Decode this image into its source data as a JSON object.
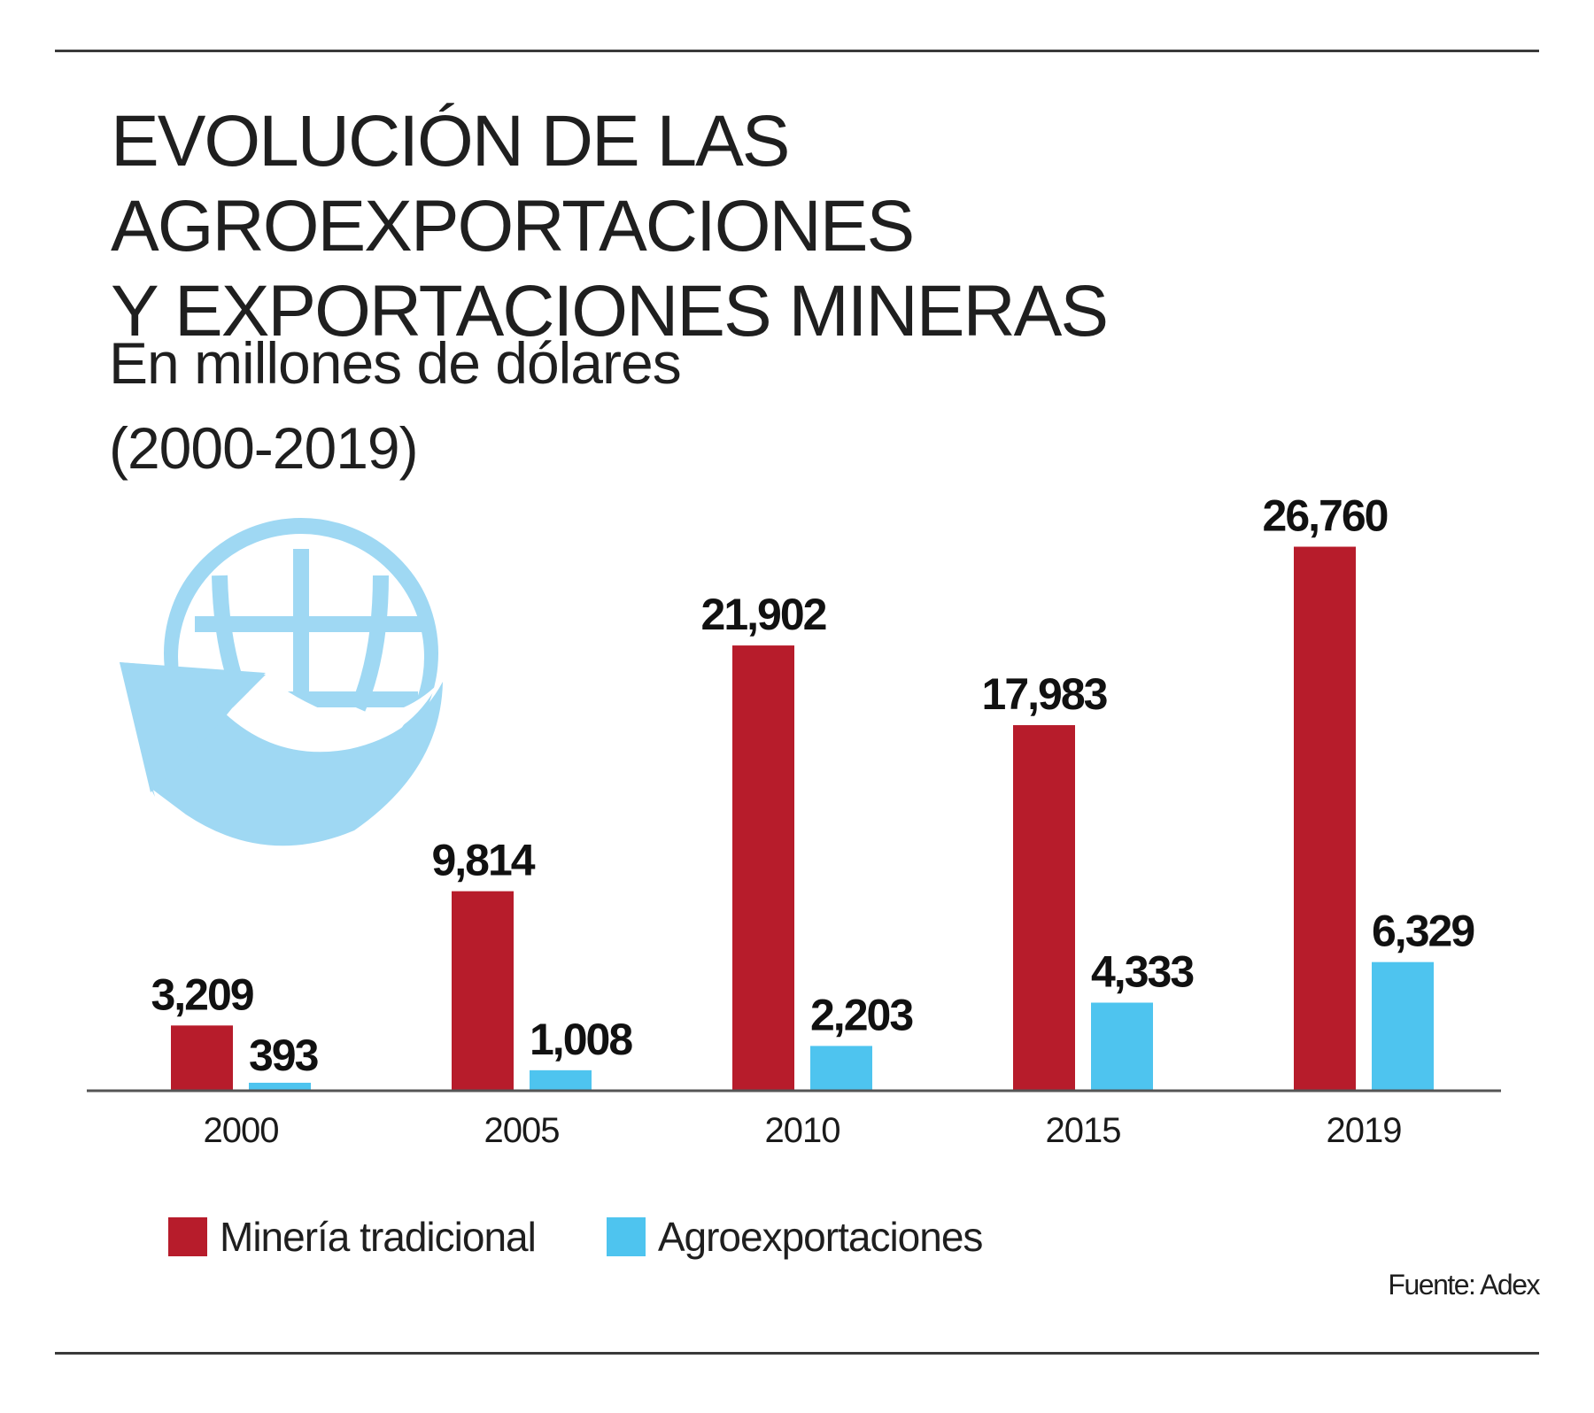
{
  "header": {
    "title_line1": "EVOLUCIÓN DE LAS AGROEXPORTACIONES",
    "title_line2": "Y EXPORTACIONES MINERAS",
    "subtitle_line1": "En millones de dólares",
    "subtitle_line2": "(2000-2019)"
  },
  "icon": "globe-with-circular-arrow-icon",
  "colors": {
    "mineria": "#b71c2b",
    "agro": "#4ec4ef",
    "icon": "#9fd8f3",
    "axis": "#555555",
    "rule": "#3a3a3a"
  },
  "chart_data": {
    "type": "bar",
    "categories": [
      "2000",
      "2005",
      "2010",
      "2015",
      "2019"
    ],
    "series": [
      {
        "name": "Minería tradicional",
        "values": [
          3209,
          9814,
          21902,
          17983,
          26760
        ],
        "labels": [
          "3,209",
          "9,814",
          "21,902",
          "17,983",
          "26,760"
        ]
      },
      {
        "name": "Agroexportaciones",
        "values": [
          393,
          1008,
          2203,
          4333,
          6329
        ],
        "labels": [
          "393",
          "1,008",
          "2,203",
          "4,333",
          "6,329"
        ]
      }
    ],
    "ylim": [
      0,
      27000
    ],
    "grid": false,
    "legend": "bottom-left",
    "xlabel": "",
    "ylabel": ""
  },
  "legend": {
    "mineria_label": "Minería tradicional",
    "agro_label": "Agroexportaciones"
  },
  "source": "Fuente: Adex"
}
